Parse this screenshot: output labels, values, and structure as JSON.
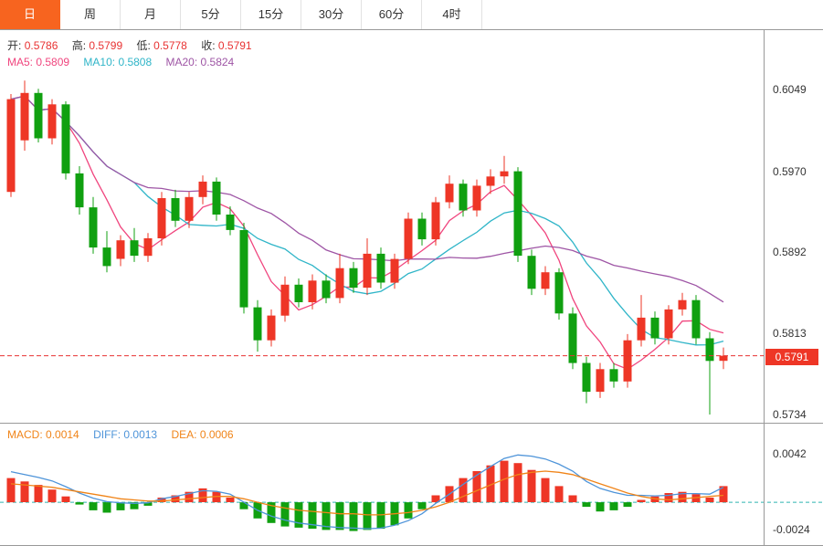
{
  "tabs": {
    "items": [
      {
        "label": "日",
        "active": true
      },
      {
        "label": "周",
        "active": false
      },
      {
        "label": "月",
        "active": false
      },
      {
        "label": "5分",
        "active": false
      },
      {
        "label": "15分",
        "active": false
      },
      {
        "label": "30分",
        "active": false
      },
      {
        "label": "60分",
        "active": false
      },
      {
        "label": "4时",
        "active": false
      }
    ]
  },
  "ohlc": {
    "open_label": "开:",
    "open": "0.5786",
    "high_label": "高:",
    "high": "0.5799",
    "low_label": "低:",
    "low": "0.5778",
    "close_label": "收:",
    "close": "0.5791"
  },
  "ma_info": {
    "ma5_label": "MA5:",
    "ma5": "0.5809",
    "ma10_label": "MA10:",
    "ma10": "0.5808",
    "ma20_label": "MA20:",
    "ma20": "0.5824"
  },
  "macd_info": {
    "macd_label": "MACD:",
    "macd": "0.0014",
    "diff_label": "DIFF:",
    "diff": "0.0013",
    "dea_label": "DEA:",
    "dea": "0.0006"
  },
  "axis": {
    "price_badge": "0.5791"
  },
  "colors": {
    "up": "#ee3626",
    "down": "#10a010",
    "ma5": "#f0457e",
    "ma10": "#2fb5c8",
    "ma20": "#9e55a5",
    "diff": "#4e94d9",
    "dea": "#f08418",
    "dash_red": "#e83232",
    "dash_teal": "#2fb5b0",
    "active_tab": "#f7641f",
    "badge_bg": "#ee3626"
  },
  "chart_data": {
    "type": "candlestick+macd",
    "main": {
      "axis_min": 0.5726,
      "axis_max": 0.6107,
      "ticks": [
        0.6049,
        0.597,
        0.5892,
        0.5813,
        0.5734
      ],
      "last_price": 0.5791,
      "ma_periods": [
        5,
        10,
        20
      ],
      "candles": [
        [
          0.595,
          0.6045,
          0.5945,
          0.604
        ],
        [
          0.6,
          0.6058,
          0.599,
          0.6046
        ],
        [
          0.6046,
          0.605,
          0.5998,
          0.6002
        ],
        [
          0.6002,
          0.604,
          0.5996,
          0.6035
        ],
        [
          0.6035,
          0.6038,
          0.5962,
          0.5968
        ],
        [
          0.5968,
          0.5975,
          0.5928,
          0.5935
        ],
        [
          0.5935,
          0.5945,
          0.589,
          0.5896
        ],
        [
          0.5896,
          0.5912,
          0.5872,
          0.5878
        ],
        [
          0.5885,
          0.5908,
          0.5878,
          0.5903
        ],
        [
          0.5903,
          0.5915,
          0.5882,
          0.5888
        ],
        [
          0.5888,
          0.591,
          0.5882,
          0.5905
        ],
        [
          0.5905,
          0.595,
          0.5898,
          0.5944
        ],
        [
          0.5944,
          0.5952,
          0.5916,
          0.5922
        ],
        [
          0.5922,
          0.595,
          0.5915,
          0.5945
        ],
        [
          0.5945,
          0.5966,
          0.5938,
          0.596
        ],
        [
          0.596,
          0.5964,
          0.5922,
          0.5928
        ],
        [
          0.5928,
          0.5936,
          0.5908,
          0.5913
        ],
        [
          0.5913,
          0.592,
          0.5832,
          0.5838
        ],
        [
          0.5838,
          0.5845,
          0.5795,
          0.5806
        ],
        [
          0.5806,
          0.5836,
          0.58,
          0.583
        ],
        [
          0.583,
          0.5868,
          0.5824,
          0.586
        ],
        [
          0.586,
          0.5866,
          0.5838,
          0.5843
        ],
        [
          0.5843,
          0.587,
          0.5836,
          0.5864
        ],
        [
          0.5864,
          0.587,
          0.5842,
          0.5847
        ],
        [
          0.5847,
          0.589,
          0.5842,
          0.5876
        ],
        [
          0.5876,
          0.5882,
          0.5852,
          0.5857
        ],
        [
          0.5857,
          0.5905,
          0.585,
          0.589
        ],
        [
          0.589,
          0.5896,
          0.5856,
          0.5862
        ],
        [
          0.5862,
          0.589,
          0.5856,
          0.5885
        ],
        [
          0.5885,
          0.593,
          0.588,
          0.5924
        ],
        [
          0.5924,
          0.593,
          0.5898,
          0.5904
        ],
        [
          0.5904,
          0.5945,
          0.5898,
          0.594
        ],
        [
          0.594,
          0.5966,
          0.5934,
          0.5958
        ],
        [
          0.5958,
          0.5962,
          0.5926,
          0.5932
        ],
        [
          0.5932,
          0.5962,
          0.5926,
          0.5956
        ],
        [
          0.5956,
          0.5972,
          0.5948,
          0.5965
        ],
        [
          0.5965,
          0.5985,
          0.5958,
          0.597
        ],
        [
          0.597,
          0.5974,
          0.5882,
          0.5888
        ],
        [
          0.5888,
          0.5894,
          0.585,
          0.5856
        ],
        [
          0.5856,
          0.5878,
          0.585,
          0.5872
        ],
        [
          0.5872,
          0.5876,
          0.5826,
          0.5832
        ],
        [
          0.5832,
          0.5838,
          0.5778,
          0.5784
        ],
        [
          0.5784,
          0.579,
          0.5745,
          0.5756
        ],
        [
          0.5756,
          0.5784,
          0.575,
          0.5778
        ],
        [
          0.5778,
          0.5784,
          0.576,
          0.5766
        ],
        [
          0.5766,
          0.5812,
          0.576,
          0.5806
        ],
        [
          0.5806,
          0.585,
          0.58,
          0.5828
        ],
        [
          0.5828,
          0.5834,
          0.5802,
          0.5808
        ],
        [
          0.5808,
          0.584,
          0.5802,
          0.5836
        ],
        [
          0.5836,
          0.5852,
          0.583,
          0.5845
        ],
        [
          0.5845,
          0.585,
          0.5802,
          0.5808
        ],
        [
          0.5808,
          0.5814,
          0.5734,
          0.5786
        ],
        [
          0.5786,
          0.5799,
          0.5778,
          0.5791
        ]
      ]
    },
    "macd": {
      "axis_min": -0.0038,
      "axis_max": 0.0069,
      "ticks": [
        0.0042,
        -0.0024
      ],
      "hist": [
        0.0021,
        0.0018,
        0.0015,
        0.0011,
        0.0005,
        -0.0002,
        -0.0007,
        -0.0009,
        -0.0007,
        -0.0006,
        -0.0003,
        0.0004,
        0.0006,
        0.0009,
        0.0012,
        0.0009,
        0.0004,
        -0.0006,
        -0.0014,
        -0.0018,
        -0.0021,
        -0.0022,
        -0.0023,
        -0.0024,
        -0.0024,
        -0.0025,
        -0.0024,
        -0.0023,
        -0.002,
        -0.0014,
        -0.0006,
        0.0006,
        0.0014,
        0.0021,
        0.0027,
        0.0032,
        0.0036,
        0.0034,
        0.0028,
        0.0021,
        0.0014,
        0.0006,
        -0.0004,
        -0.0008,
        -0.0007,
        -0.0004,
        0.0002,
        0.0005,
        0.0008,
        0.0009,
        0.0007,
        0.0004,
        0.0014
      ],
      "dea": [
        0.0016,
        0.0015,
        0.0014,
        0.0013,
        0.0011,
        0.0009,
        0.0007,
        0.0005,
        0.0003,
        0.0002,
        0.0001,
        0.0001,
        0.0002,
        0.0003,
        0.0004,
        0.0005,
        0.0005,
        0.0003,
        0.0,
        -0.0003,
        -0.0005,
        -0.0007,
        -0.0008,
        -0.0009,
        -0.001,
        -0.001,
        -0.0011,
        -0.0011,
        -0.001,
        -0.0009,
        -0.0007,
        -0.0004,
        0.0,
        0.0005,
        0.001,
        0.0015,
        0.002,
        0.0024,
        0.0026,
        0.0027,
        0.0026,
        0.0024,
        0.002,
        0.0016,
        0.0012,
        0.0008,
        0.0005,
        0.0003,
        0.0002,
        0.0003,
        0.0004,
        0.0005,
        0.0006
      ]
    }
  }
}
